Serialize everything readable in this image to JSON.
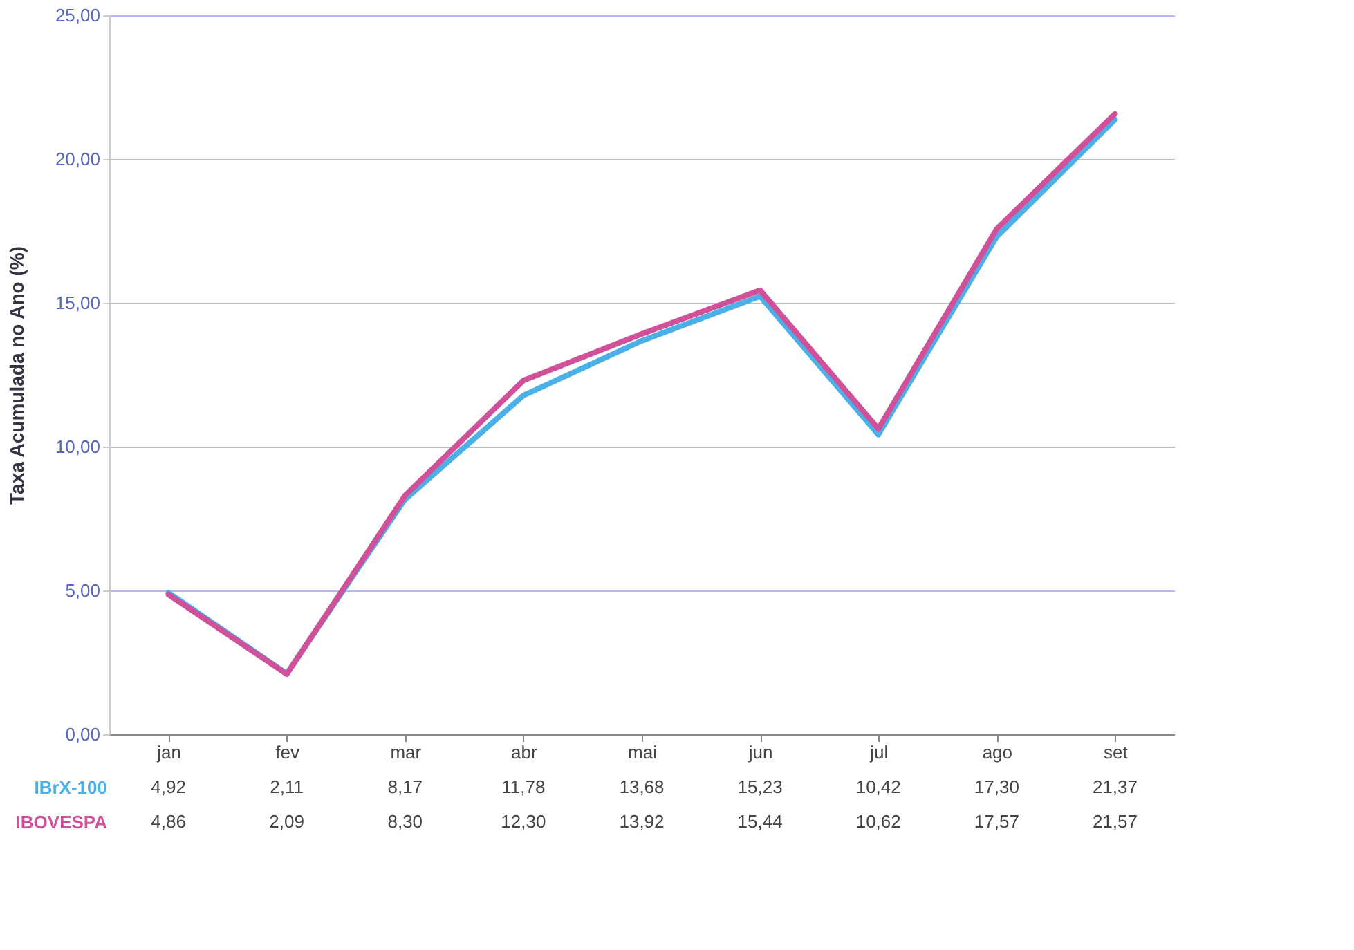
{
  "chart_data": {
    "type": "line",
    "ylabel": "Taxa Acumulada no Ano (%)",
    "categories": [
      "jan",
      "fev",
      "mar",
      "abr",
      "mai",
      "jun",
      "jul",
      "ago",
      "set"
    ],
    "series": [
      {
        "name": "IBrX-100",
        "color": "#4bb0e8",
        "values": [
          4.92,
          2.11,
          8.17,
          11.78,
          13.68,
          15.23,
          10.42,
          17.3,
          21.37
        ],
        "value_labels": [
          "4,92",
          "2,11",
          "8,17",
          "11,78",
          "13,68",
          "15,23",
          "10,42",
          "17,30",
          "21,37"
        ]
      },
      {
        "name": "IBOVESPA",
        "color": "#d0509a",
        "values": [
          4.86,
          2.09,
          8.3,
          12.3,
          13.92,
          15.44,
          10.62,
          17.57,
          21.57
        ],
        "value_labels": [
          "4,86",
          "2,09",
          "8,30",
          "12,30",
          "13,92",
          "15,44",
          "10,62",
          "17,57",
          "21,57"
        ]
      }
    ],
    "ylim": [
      0,
      25
    ],
    "yticks": [
      {
        "value": 0,
        "label": "0,00"
      },
      {
        "value": 5,
        "label": "5,00"
      },
      {
        "value": 10,
        "label": "10,00"
      },
      {
        "value": 15,
        "label": "15,00"
      },
      {
        "value": 20,
        "label": "20,00"
      },
      {
        "value": 25,
        "label": "25,00"
      }
    ],
    "grid": "y"
  }
}
